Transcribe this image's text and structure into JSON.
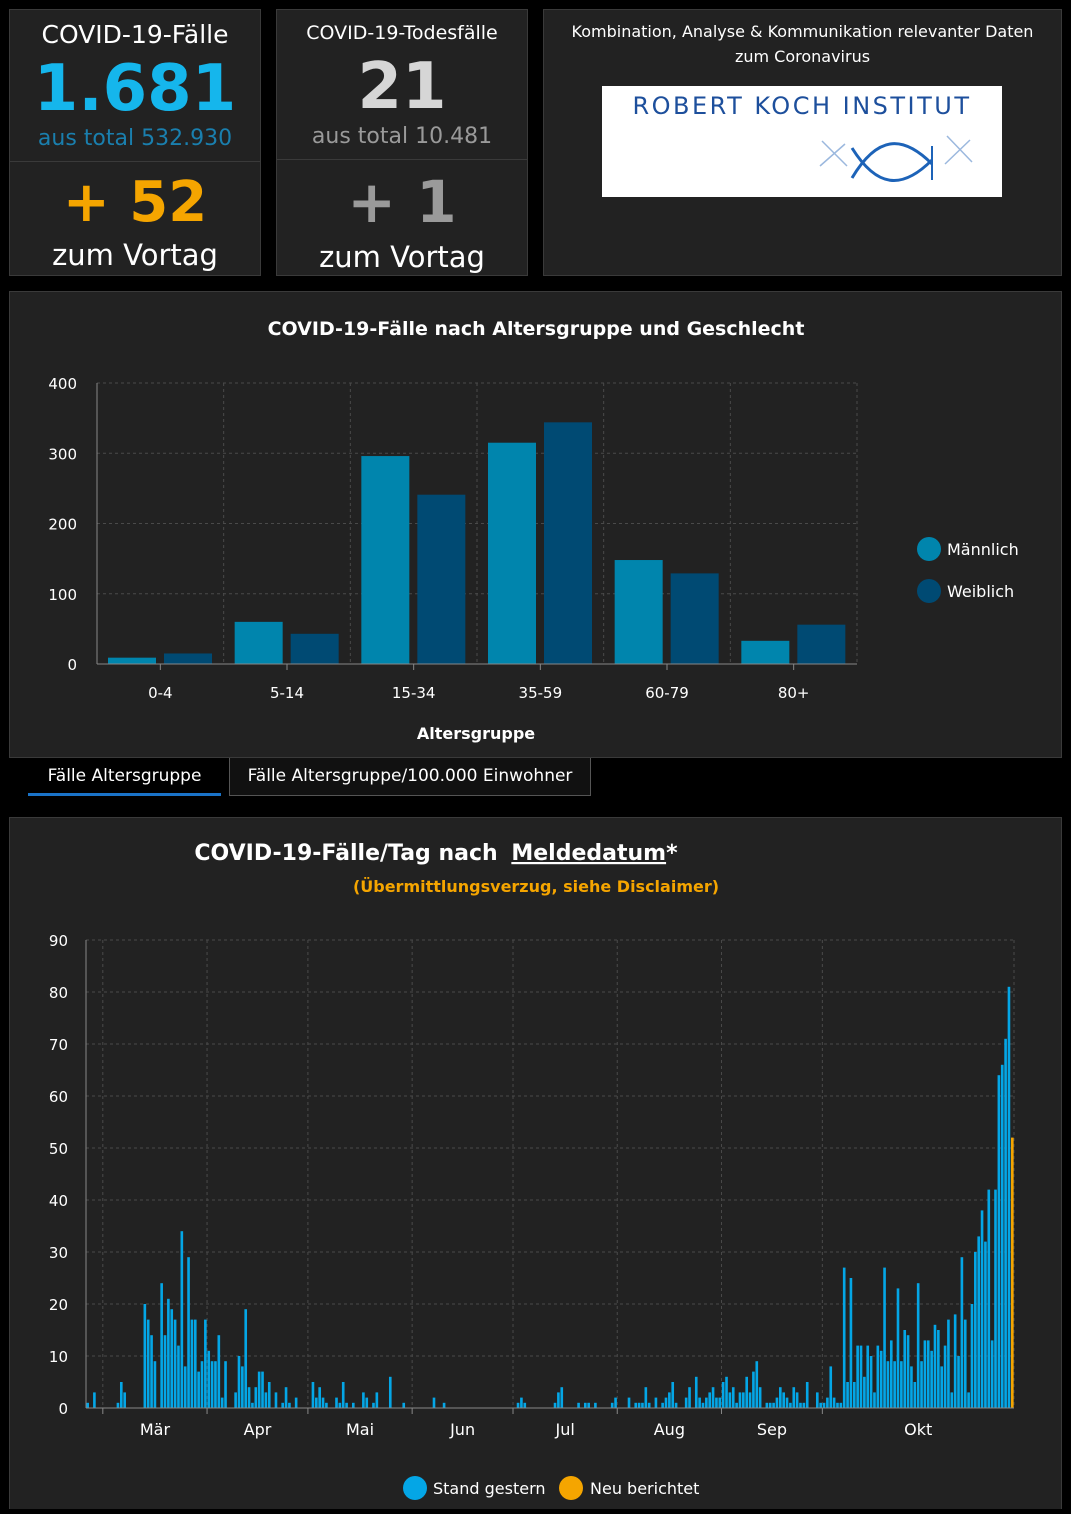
{
  "cases": {
    "title": "COVID-19-Fälle",
    "value": "1.681",
    "total": "aus total 532.930",
    "delta": "+ 52",
    "delta_label": "zum Vortag"
  },
  "deaths": {
    "title": "COVID-19-Todesfälle",
    "value": "21",
    "total": "aus total 10.481",
    "delta": "+ 1",
    "delta_label": "zum Vortag"
  },
  "info": {
    "text_line1": "Kombination, Analyse & Kommunikation relevanter Daten",
    "text_line2": "zum Coronavirus",
    "logo_text": "ROBERT KOCH INSTITUT"
  },
  "tabs": [
    "Fälle Altersgruppe",
    "Fälle Altersgruppe/100.000 Einwohner"
  ],
  "colors": {
    "male": "#0085ad",
    "female": "#004a73",
    "daily": "#04a6e6",
    "new": "#f5a500",
    "cases_value": "#15b6ec",
    "cases_delta": "#f5a500",
    "grey_text": "#9a9a9a"
  },
  "chart_data": [
    {
      "type": "bar",
      "title": "COVID-19-Fälle nach Altersgruppe und Geschlecht",
      "xlabel": "Altersgruppe",
      "ylabel": "",
      "categories": [
        "0-4",
        "5-14",
        "15-34",
        "35-59",
        "60-79",
        "80+"
      ],
      "series": [
        {
          "name": "Männlich",
          "values": [
            9,
            60,
            296,
            315,
            148,
            33
          ]
        },
        {
          "name": "Weiblich",
          "values": [
            15,
            43,
            241,
            344,
            129,
            56
          ]
        }
      ],
      "ylim": [
        0,
        400
      ],
      "yticks": [
        0,
        100,
        200,
        300,
        400
      ],
      "grid": true,
      "legend": "right"
    },
    {
      "type": "bar",
      "title": "COVID-19-Fälle/Tag nach",
      "title_link": "Meldedatum",
      "title_suffix": "*",
      "subtitle": "(Übermittlungsverzug, siehe Disclaimer)",
      "xlabel": "",
      "ylabel": "",
      "x_start": "2020-02-25",
      "month_ticks": [
        {
          "label": "Mär",
          "date": "2020-03-01"
        },
        {
          "label": "Apr",
          "date": "2020-04-01"
        },
        {
          "label": "Mai",
          "date": "2020-05-01"
        },
        {
          "label": "Jun",
          "date": "2020-06-01"
        },
        {
          "label": "Jul",
          "date": "2020-07-01"
        },
        {
          "label": "Aug",
          "date": "2020-08-01"
        },
        {
          "label": "Sep",
          "date": "2020-09-01"
        },
        {
          "label": "Okt",
          "date": "2020-10-01"
        }
      ],
      "series": [
        {
          "name": "Stand gestern",
          "values": [
            1,
            0,
            3,
            0,
            0,
            0,
            0,
            0,
            0,
            1,
            5,
            3,
            0,
            0,
            0,
            0,
            0,
            20,
            17,
            14,
            9,
            0,
            24,
            14,
            21,
            19,
            17,
            12,
            34,
            8,
            29,
            17,
            17,
            7,
            9,
            17,
            11,
            9,
            9,
            14,
            2,
            9,
            0,
            0,
            3,
            10,
            8,
            19,
            4,
            1,
            4,
            7,
            7,
            3,
            5,
            0,
            3,
            0,
            1,
            4,
            1,
            0,
            2,
            0,
            0,
            0,
            0,
            5,
            2,
            4,
            2,
            1,
            0,
            0,
            2,
            1,
            5,
            1,
            0,
            1,
            0,
            0,
            3,
            2,
            0,
            1,
            3,
            0,
            0,
            0,
            6,
            0,
            0,
            0,
            1,
            0,
            0,
            0,
            0,
            0,
            0,
            0,
            0,
            2,
            0,
            0,
            1,
            0,
            0,
            0,
            0,
            0,
            0,
            0,
            0,
            0,
            0,
            0,
            0,
            0,
            0,
            0,
            0,
            0,
            0,
            0,
            0,
            0,
            1,
            2,
            1,
            0,
            0,
            0,
            0,
            0,
            0,
            0,
            0,
            1,
            3,
            4,
            0,
            0,
            0,
            0,
            1,
            0,
            1,
            1,
            0,
            1,
            0,
            0,
            0,
            0,
            1,
            2,
            0,
            0,
            0,
            2,
            0,
            1,
            1,
            1,
            4,
            1,
            0,
            2,
            0,
            1,
            2,
            3,
            5,
            1,
            0,
            0,
            2,
            4,
            0,
            6,
            2,
            1,
            2,
            3,
            4,
            2,
            2,
            5,
            6,
            3,
            4,
            1,
            3,
            3,
            6,
            3,
            7,
            9,
            4,
            0,
            1,
            1,
            1,
            2,
            4,
            3,
            2,
            1,
            4,
            3,
            1,
            1,
            5,
            0,
            0,
            3,
            1,
            1,
            2,
            8,
            2,
            1,
            1,
            27,
            5,
            25,
            5,
            12,
            12,
            6,
            12,
            10,
            3,
            12,
            11,
            27,
            9,
            13,
            9,
            23,
            9,
            15,
            14,
            8,
            5,
            24,
            9,
            13,
            13,
            11,
            16,
            15,
            8,
            12,
            17,
            3,
            18,
            10,
            29,
            17,
            3,
            20,
            30,
            33,
            38,
            32,
            42,
            13,
            42,
            64,
            66,
            71,
            81
          ]
        },
        {
          "name": "Neu berichtet",
          "values": [
            52
          ]
        }
      ],
      "ylim": [
        0,
        90
      ],
      "yticks": [
        0,
        10,
        20,
        30,
        40,
        50,
        60,
        70,
        80,
        90
      ],
      "grid": true,
      "legend": "bottom"
    }
  ]
}
